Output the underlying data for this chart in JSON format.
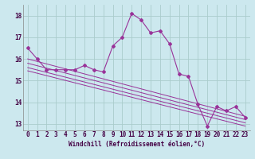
{
  "xlabel": "Windchill (Refroidissement éolien,°C)",
  "background_color": "#cce8ee",
  "grid_color": "#aacccc",
  "line_color": "#993399",
  "x_hours": [
    0,
    1,
    2,
    3,
    4,
    5,
    6,
    7,
    8,
    9,
    10,
    11,
    12,
    13,
    14,
    15,
    16,
    17,
    18,
    19,
    20,
    21,
    22,
    23
  ],
  "windchill": [
    16.5,
    16.0,
    15.5,
    15.5,
    15.5,
    15.5,
    15.7,
    15.5,
    15.4,
    16.6,
    17.0,
    18.1,
    17.8,
    17.2,
    17.3,
    16.7,
    15.3,
    15.2,
    13.9,
    12.9,
    13.8,
    13.6,
    13.8,
    13.3
  ],
  "trend_lines": [
    [
      16.0,
      13.35
    ],
    [
      15.8,
      13.2
    ],
    [
      15.6,
      13.05
    ],
    [
      15.45,
      12.9
    ]
  ],
  "ylim": [
    12.7,
    18.5
  ],
  "yticks": [
    13,
    14,
    15,
    16,
    17,
    18
  ],
  "xticks": [
    0,
    1,
    2,
    3,
    4,
    5,
    6,
    7,
    8,
    9,
    10,
    11,
    12,
    13,
    14,
    15,
    16,
    17,
    18,
    19,
    20,
    21,
    22,
    23
  ],
  "tick_fontsize": 5.5,
  "xlabel_fontsize": 5.5
}
